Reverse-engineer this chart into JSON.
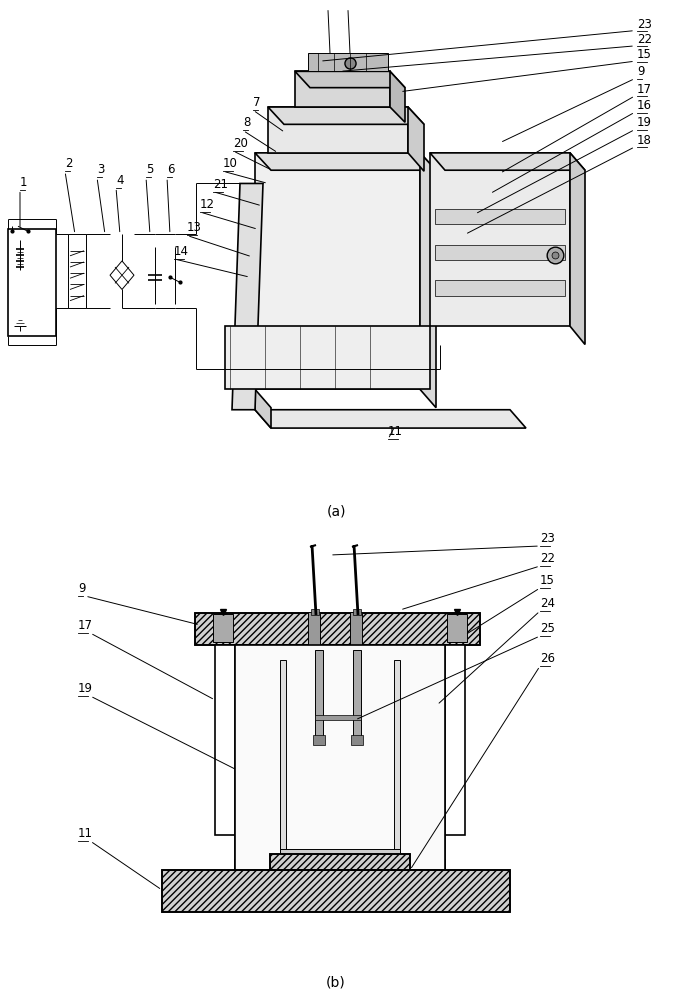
{
  "fig_width": 6.73,
  "fig_height": 10.0,
  "dpi": 100,
  "bg_color": "#ffffff",
  "line_color": "#000000",
  "fs_label": 8.5,
  "fs_caption": 10,
  "caption_a": "(a)",
  "caption_b": "(b)",
  "lw_main": 1.2,
  "lw_thin": 0.7,
  "hatch_fc": "#d0d0d0",
  "body_fc": "#f2f2f2",
  "gray_fc": "#c0c0c0"
}
